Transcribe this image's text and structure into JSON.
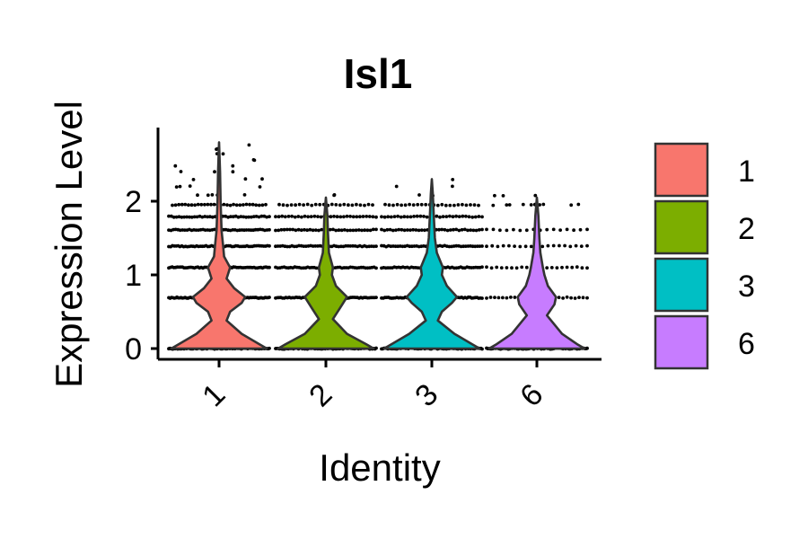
{
  "chart_data": {
    "type": "violin",
    "title": "Isl1",
    "xlabel": "Identity",
    "ylabel": "Expression Level",
    "categories": [
      "1",
      "2",
      "3",
      "6"
    ],
    "colors": [
      "#F8766D",
      "#7CAE00",
      "#00BFC4",
      "#C77CFF"
    ],
    "ylim": [
      -0.15,
      2.95
    ],
    "yticks": [
      0,
      1,
      2
    ],
    "ytick_labels": [
      "0",
      "1",
      "2"
    ],
    "max_expression": [
      2.8,
      2.05,
      2.3,
      2.05
    ],
    "point_levels": [
      [
        0,
        0.69,
        1.1,
        1.39,
        1.61,
        1.79,
        1.95,
        2.08,
        2.2,
        2.3,
        2.4,
        2.48,
        2.56,
        2.64,
        2.71,
        2.77
      ],
      [
        0,
        0.69,
        1.1,
        1.39,
        1.61,
        1.79,
        1.95,
        2.08
      ],
      [
        0,
        0.69,
        1.1,
        1.39,
        1.61,
        1.79,
        1.95,
        2.08,
        2.2,
        2.3
      ],
      [
        0,
        0.69,
        1.1,
        1.39,
        1.61,
        1.95,
        2.08
      ]
    ],
    "legend": {
      "position": "right",
      "entries": [
        "1",
        "2",
        "3",
        "6"
      ]
    },
    "grid": false
  }
}
